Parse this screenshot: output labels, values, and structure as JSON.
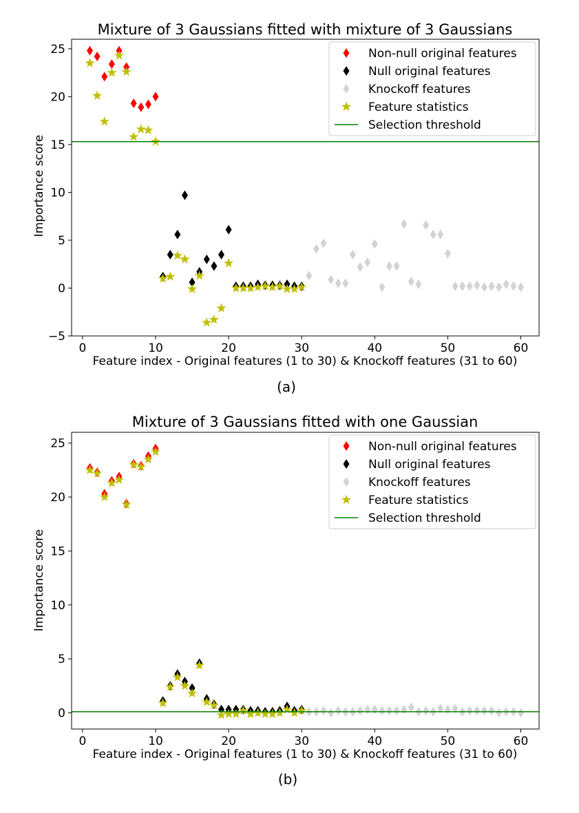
{
  "chart_data": [
    {
      "type": "scatter",
      "title": "Mixture of 3 Gaussians fitted with mixture of 3 Gaussians",
      "xlabel": "Feature index - Original features (1 to 30) & Knockoff features (31 to 60)",
      "ylabel": "Importance score",
      "caption": "(a)",
      "xlim": [
        -1.5,
        62.5
      ],
      "ylim": [
        -5,
        26
      ],
      "xticks": [
        0,
        10,
        20,
        30,
        40,
        50,
        60
      ],
      "yticks": [
        -5,
        0,
        5,
        10,
        15,
        20,
        25
      ],
      "threshold": 15.3,
      "legend": [
        "Non-null original features",
        "Null original features",
        "Knockoff features",
        "Feature statistics",
        "Selection threshold"
      ],
      "legend_position": "top-right",
      "colors": {
        "nonnull": "#ff0000",
        "null": "#000000",
        "knockoff": "#d3d3d3",
        "stat": "#bfbf00",
        "threshold": "#008000"
      },
      "series": [
        {
          "name": "Non-null original features",
          "x": [
            1,
            2,
            3,
            4,
            5,
            6,
            7,
            8,
            9,
            10
          ],
          "y": [
            24.8,
            24.2,
            22.1,
            23.4,
            24.8,
            23.1,
            19.3,
            18.9,
            19.2,
            20.0
          ]
        },
        {
          "name": "Null original features",
          "x": [
            11,
            12,
            13,
            14,
            15,
            16,
            17,
            18,
            19,
            20,
            21,
            22,
            23,
            24,
            25,
            26,
            27,
            28,
            29,
            30
          ],
          "y": [
            1.2,
            3.5,
            5.6,
            9.7,
            0.6,
            1.7,
            3.0,
            2.3,
            3.5,
            6.1,
            0.2,
            0.2,
            0.2,
            0.4,
            0.3,
            0.3,
            0.3,
            0.4,
            0.2,
            0.2
          ]
        },
        {
          "name": "Knockoff features",
          "x": [
            31,
            32,
            33,
            34,
            35,
            36,
            37,
            38,
            39,
            40,
            41,
            42,
            43,
            44,
            45,
            46,
            47,
            48,
            49,
            50,
            51,
            52,
            53,
            54,
            55,
            56,
            57,
            58,
            59,
            60
          ],
          "y": [
            1.3,
            4.1,
            4.7,
            0.9,
            0.5,
            0.5,
            3.5,
            2.2,
            2.7,
            4.6,
            0.1,
            2.3,
            2.3,
            6.7,
            0.7,
            0.4,
            6.6,
            5.6,
            5.6,
            3.6,
            0.2,
            0.2,
            0.2,
            0.3,
            0.1,
            0.2,
            0.1,
            0.4,
            0.2,
            0.1
          ]
        },
        {
          "name": "Feature statistics",
          "x": [
            1,
            2,
            3,
            4,
            5,
            6,
            7,
            8,
            9,
            10,
            11,
            12,
            13,
            14,
            15,
            16,
            17,
            18,
            19,
            20,
            21,
            22,
            23,
            24,
            25,
            26,
            27,
            28,
            29,
            30
          ],
          "y": [
            23.5,
            20.1,
            17.4,
            22.5,
            24.3,
            22.6,
            15.8,
            16.6,
            16.5,
            15.3,
            1.0,
            1.2,
            3.4,
            3.0,
            -0.1,
            1.3,
            -3.6,
            -3.3,
            -2.1,
            2.6,
            0.0,
            0.0,
            0.0,
            0.1,
            0.2,
            0.1,
            0.2,
            -0.1,
            -0.1,
            0.1
          ]
        }
      ]
    },
    {
      "type": "scatter",
      "title": "Mixture of 3 Gaussians fitted with one Gaussian",
      "xlabel": "Feature index - Original features (1 to 30) & Knockoff features (31 to 60)",
      "ylabel": "Importance score",
      "caption": "(b)",
      "xlim": [
        -1.5,
        62.5
      ],
      "ylim": [
        -1.5,
        26
      ],
      "xticks": [
        0,
        10,
        20,
        30,
        40,
        50,
        60
      ],
      "yticks": [
        0,
        5,
        10,
        15,
        20,
        25
      ],
      "threshold": 0.1,
      "legend": [
        "Non-null original features",
        "Null original features",
        "Knockoff features",
        "Feature statistics",
        "Selection threshold"
      ],
      "legend_position": "top-right",
      "colors": {
        "nonnull": "#ff0000",
        "null": "#000000",
        "knockoff": "#d3d3d3",
        "stat": "#bfbf00",
        "threshold": "#008000"
      },
      "series": [
        {
          "name": "Non-null original features",
          "x": [
            1,
            2,
            3,
            4,
            5,
            6,
            7,
            8,
            9,
            10
          ],
          "y": [
            22.7,
            22.3,
            20.3,
            21.5,
            21.9,
            19.4,
            23.1,
            22.9,
            23.8,
            24.5
          ]
        },
        {
          "name": "Null original features",
          "x": [
            11,
            12,
            13,
            14,
            15,
            16,
            17,
            18,
            19,
            20,
            21,
            22,
            23,
            24,
            25,
            26,
            27,
            28,
            29,
            30
          ],
          "y": [
            1.1,
            2.5,
            3.6,
            2.9,
            2.3,
            4.6,
            1.3,
            0.8,
            0.3,
            0.3,
            0.3,
            0.3,
            0.2,
            0.2,
            0.1,
            0.1,
            0.2,
            0.6,
            0.2,
            0.3
          ]
        },
        {
          "name": "Knockoff features",
          "x": [
            31,
            32,
            33,
            34,
            35,
            36,
            37,
            38,
            39,
            40,
            41,
            42,
            43,
            44,
            45,
            46,
            47,
            48,
            49,
            50,
            51,
            52,
            53,
            54,
            55,
            56,
            57,
            58,
            59,
            60
          ],
          "y": [
            0.1,
            0.1,
            0.2,
            0.0,
            0.2,
            0.1,
            0.1,
            0.2,
            0.3,
            0.3,
            0.2,
            0.2,
            0.2,
            0.3,
            0.5,
            0.1,
            0.2,
            0.1,
            0.4,
            0.3,
            0.4,
            0.1,
            0.2,
            0.2,
            0.2,
            0.2,
            0.0,
            0.1,
            0.1,
            0.0
          ]
        },
        {
          "name": "Feature statistics",
          "x": [
            1,
            2,
            3,
            4,
            5,
            6,
            7,
            8,
            9,
            10,
            11,
            12,
            13,
            14,
            15,
            16,
            17,
            18,
            19,
            20,
            21,
            22,
            23,
            24,
            25,
            26,
            27,
            28,
            29,
            30
          ],
          "y": [
            22.5,
            22.2,
            20.0,
            21.3,
            21.6,
            19.3,
            23.0,
            22.8,
            23.5,
            24.2,
            0.9,
            2.4,
            3.3,
            2.5,
            1.8,
            4.4,
            1.0,
            0.7,
            -0.2,
            -0.1,
            -0.1,
            0.2,
            -0.1,
            0.0,
            -0.1,
            -0.1,
            0.0,
            0.3,
            0.0,
            0.2
          ]
        }
      ]
    }
  ]
}
